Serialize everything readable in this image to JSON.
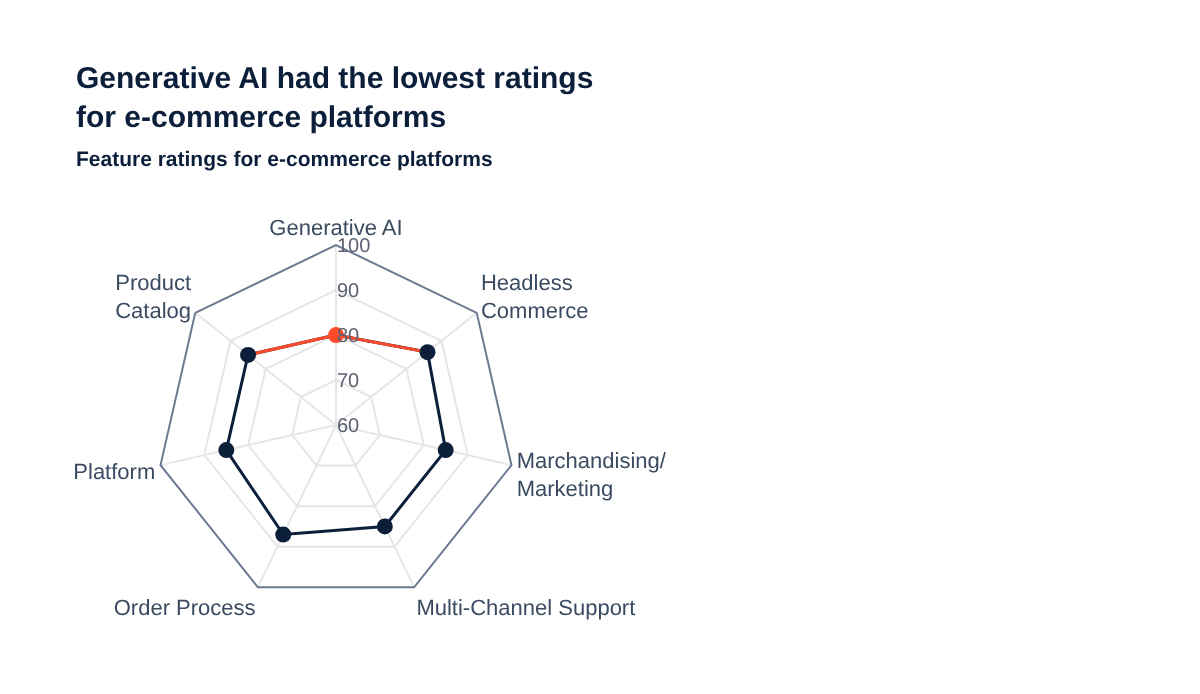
{
  "chart_data": {
    "type": "radar",
    "title": "Generative AI had the lowest ratings\nfor e-commerce platforms",
    "subtitle": "Feature ratings for e-commerce platforms",
    "categories": [
      "Generative AI",
      "Headless\nCommerce",
      "Marchandising/\nMarketing",
      "Multi-Channel Support",
      "Order Process",
      "Platform",
      "Product\nCatalog"
    ],
    "series": [
      {
        "color": "#0b1f3a",
        "colors": [
          "#ff4a2b",
          "#0b1f3a",
          "#0b1f3a",
          "#0b1f3a",
          "#0b1f3a",
          "#0b1f3a",
          "#0b1f3a"
        ],
        "values": [
          80,
          86,
          85,
          85,
          87,
          85,
          85
        ]
      }
    ],
    "ylim": [
      60,
      100
    ],
    "yticks": [
      60,
      70,
      80,
      90,
      100
    ],
    "grid": true,
    "marker": "circle"
  }
}
